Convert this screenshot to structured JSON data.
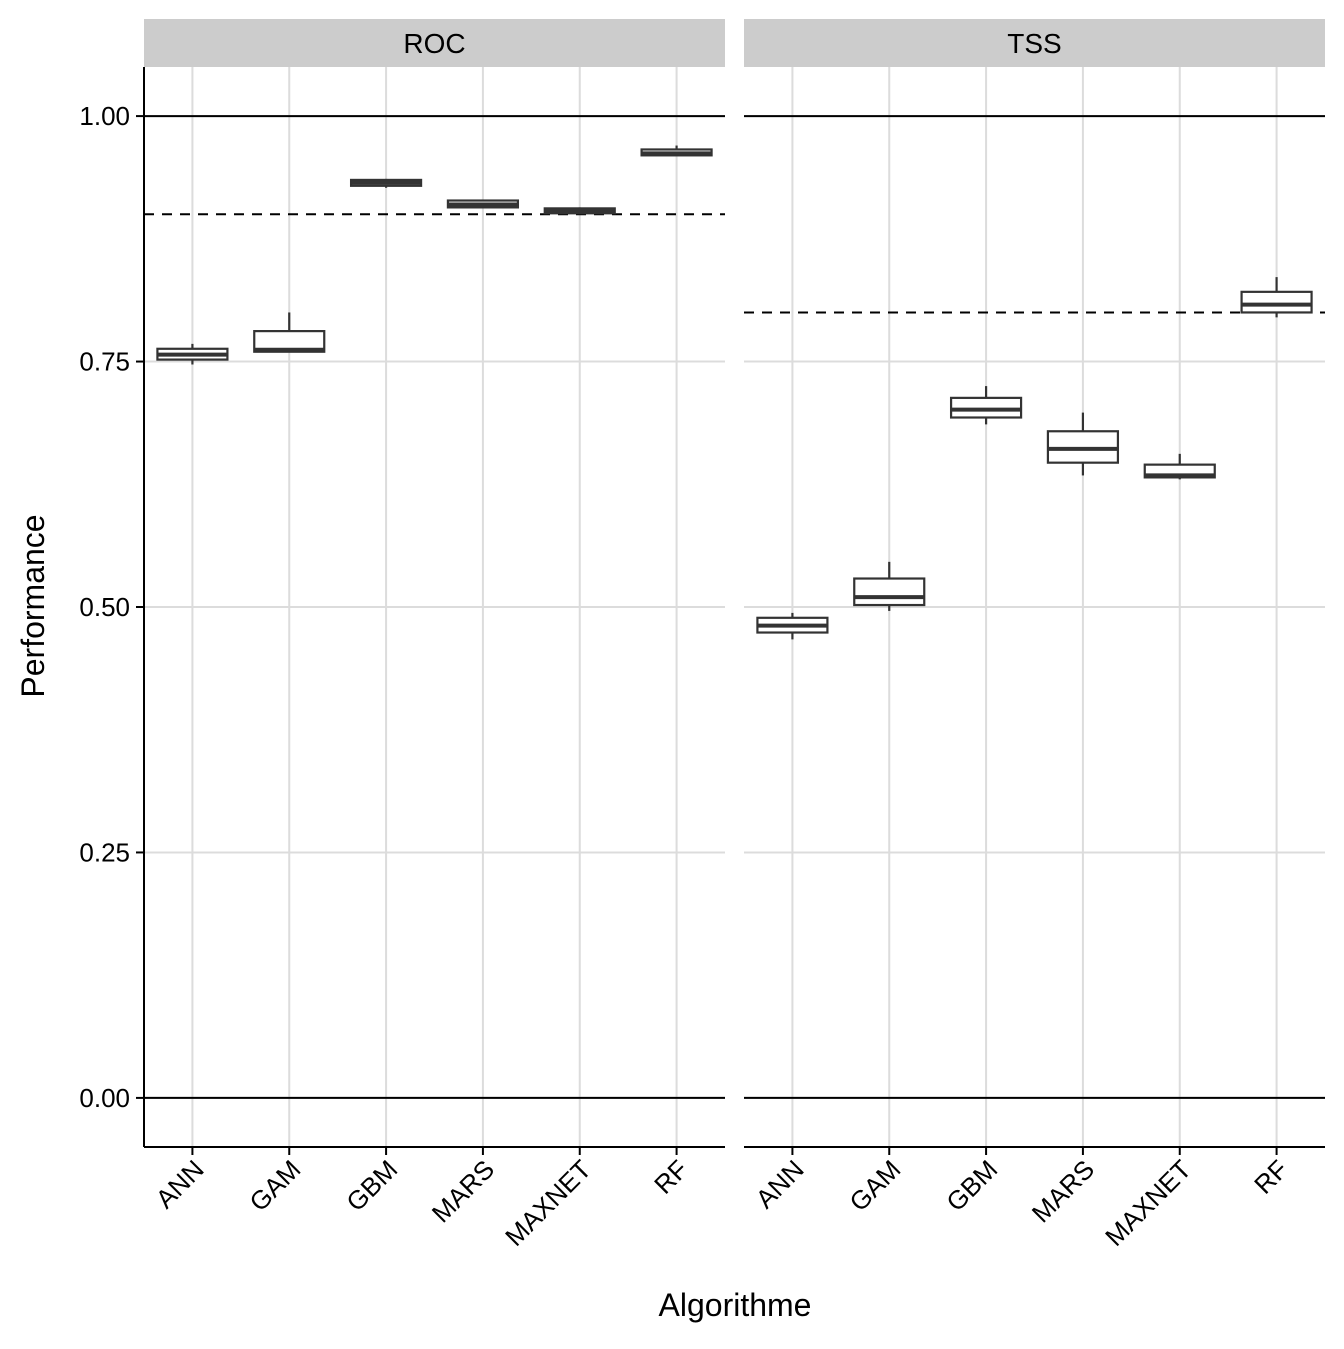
{
  "chart_data": {
    "type": "boxplot",
    "xlabel": "Algorithme",
    "ylabel": "Performance",
    "ylim": [
      -0.05,
      1.05
    ],
    "yticks": [
      0.0,
      0.25,
      0.5,
      0.75,
      1.0
    ],
    "ytick_labels": [
      "0.00",
      "0.25",
      "0.50",
      "0.75",
      "1.00"
    ],
    "reference_lines": [
      0.0,
      1.0
    ],
    "grid": true,
    "categories": [
      "ANN",
      "GAM",
      "GBM",
      "MARS",
      "MAXNET",
      "RF"
    ],
    "panels": [
      {
        "title": "ROC",
        "threshold": 0.9,
        "boxes": [
          {
            "category": "ANN",
            "min": 0.747,
            "q1": 0.752,
            "median": 0.757,
            "q3": 0.763,
            "max": 0.768
          },
          {
            "category": "GAM",
            "min": 0.76,
            "q1": 0.76,
            "median": 0.762,
            "q3": 0.781,
            "max": 0.8
          },
          {
            "category": "GBM",
            "min": 0.927,
            "q1": 0.929,
            "median": 0.932,
            "q3": 0.935,
            "max": 0.936
          },
          {
            "category": "MARS",
            "min": 0.906,
            "q1": 0.907,
            "median": 0.91,
            "q3": 0.914,
            "max": 0.915
          },
          {
            "category": "MAXNET",
            "min": 0.901,
            "q1": 0.901,
            "median": 0.903,
            "q3": 0.906,
            "max": 0.907
          },
          {
            "category": "RF",
            "min": 0.96,
            "q1": 0.96,
            "median": 0.962,
            "q3": 0.966,
            "max": 0.97
          }
        ]
      },
      {
        "title": "TSS",
        "threshold": 0.8,
        "boxes": [
          {
            "category": "ANN",
            "min": 0.467,
            "q1": 0.474,
            "median": 0.481,
            "q3": 0.489,
            "max": 0.494
          },
          {
            "category": "GAM",
            "min": 0.496,
            "q1": 0.502,
            "median": 0.51,
            "q3": 0.529,
            "max": 0.546
          },
          {
            "category": "GBM",
            "min": 0.686,
            "q1": 0.693,
            "median": 0.701,
            "q3": 0.713,
            "max": 0.725
          },
          {
            "category": "MARS",
            "min": 0.634,
            "q1": 0.647,
            "median": 0.661,
            "q3": 0.679,
            "max": 0.698
          },
          {
            "category": "MAXNET",
            "min": 0.63,
            "q1": 0.632,
            "median": 0.634,
            "q3": 0.645,
            "max": 0.656
          },
          {
            "category": "RF",
            "min": 0.795,
            "q1": 0.8,
            "median": 0.808,
            "q3": 0.821,
            "max": 0.836
          }
        ]
      }
    ]
  }
}
